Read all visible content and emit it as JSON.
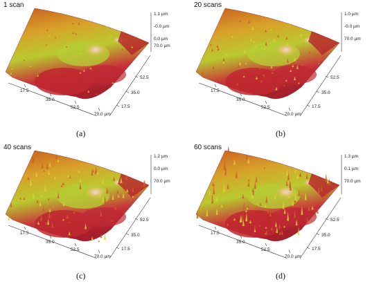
{
  "panels": [
    {
      "title": "1 scan",
      "caption": "(a)",
      "z_labels": [
        "1.1 µm",
        "-0.0 µm",
        "0.0 µm",
        "70.0 µm"
      ],
      "xy_ticks": [
        "17.5",
        "35.0",
        "52.5",
        "70.0 µm"
      ],
      "depth_ticks": [
        "17.5",
        "35.0",
        "52.5"
      ]
    },
    {
      "title": "20 scans",
      "caption": "(b)",
      "z_labels": [
        "1.0 µm",
        "-0.0 µm",
        "70.0 µm"
      ],
      "xy_ticks": [
        "17.5",
        "35.0",
        "52.5",
        "70.0 µm"
      ],
      "depth_ticks": [
        "17.5",
        "35.0",
        "52.5"
      ]
    },
    {
      "title": "40 scans",
      "caption": "(c)",
      "z_labels": [
        "1.2 µm",
        "0.0 µm",
        "70.0 µm"
      ],
      "xy_ticks": [
        "17.5",
        "35.0",
        "52.5",
        "70.0 µm"
      ],
      "depth_ticks": [
        "17.5",
        "35.0",
        "52.5"
      ]
    },
    {
      "title": "60 scans",
      "caption": "(d)",
      "z_labels": [
        "1.3 µm",
        "0.1 µm",
        "70.0 µm"
      ],
      "xy_ticks": [
        "17.5",
        "35.0",
        "52.5",
        "70.0 µm"
      ],
      "depth_ticks": [
        "17.5",
        "35.0",
        "52.5"
      ]
    }
  ]
}
